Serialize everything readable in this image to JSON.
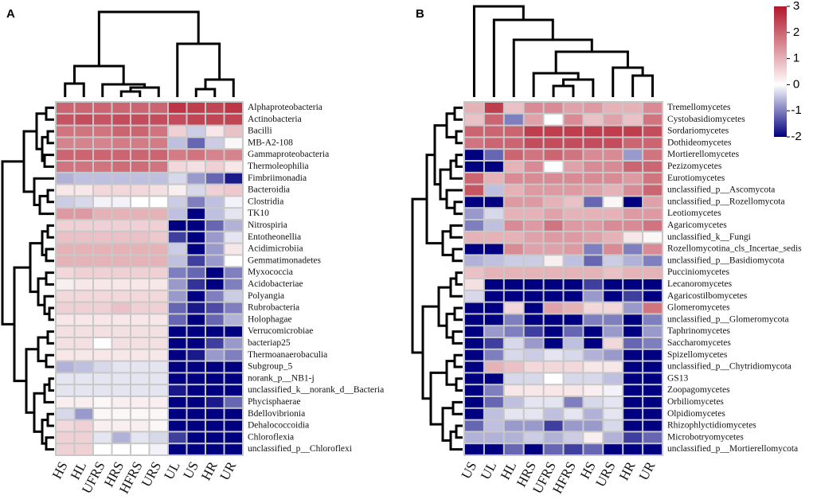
{
  "chart_data": [
    {
      "type": "heatmap",
      "title": "A",
      "columns": [
        "HS",
        "HL",
        "UFRS",
        "HRS",
        "HFRS",
        "URS",
        "UL",
        "US",
        "HR",
        "UR"
      ],
      "rows": [
        "Alphaproteobacteria",
        "Actinobacteria",
        "Bacilli",
        "MB-A2-108",
        "Gammaproteobacteria",
        "Thermoleophilia",
        "Fimbriimonadia",
        "Bacteroidia",
        "Clostridia",
        "TK10",
        "Nitrospiria",
        "Entotheonellia",
        "Acidimicrobiia",
        "Gemmatimonadetes",
        "Myxococcia",
        "Acidobacteriae",
        "Polyangia",
        "Rubrobacteria",
        "Holophagae",
        "Verrucomicrobiae",
        "bacteriap25",
        "Thermoanaerobaculia",
        "Subgroup_5",
        "norank_p__NB1-j",
        "unclassified_k__norank_d__Bacteria",
        "Phycisphaerae",
        "Bdellovibrionia",
        "Dehalococcoidia",
        "Chloroflexia",
        "unclassified_p__Chloroflexi"
      ],
      "values": [
        [
          2,
          2,
          2,
          2,
          2,
          2,
          2.6,
          2.5,
          2.4,
          2.6
        ],
        [
          2.2,
          2.3,
          2.2,
          2.3,
          2.3,
          2.3,
          2.3,
          2.4,
          2.4,
          2.4
        ],
        [
          1.8,
          1.8,
          1.8,
          2,
          2,
          1.8,
          0.6,
          -0.4,
          0.3,
          0.8
        ],
        [
          1.6,
          1.6,
          1.6,
          1.7,
          1.7,
          1.7,
          -0.5,
          -1.2,
          -0.4,
          0.1
        ],
        [
          2,
          2,
          2,
          2,
          2,
          2,
          1.7,
          1.8,
          1.6,
          1.6
        ],
        [
          1.8,
          1.8,
          1.8,
          1.9,
          1.9,
          1.8,
          0.5,
          0.4,
          0.6,
          0.3
        ],
        [
          -0.6,
          -0.5,
          -0.5,
          -0.5,
          -0.5,
          -0.5,
          -0.3,
          -0.8,
          -1.2,
          -1.8
        ],
        [
          0.3,
          0.3,
          0.5,
          0.5,
          0.5,
          0.4,
          0.2,
          -0.3,
          0.6,
          0.7
        ],
        [
          -0.4,
          -0.3,
          -0.1,
          -0.1,
          0,
          0,
          -0.4,
          -1,
          -0.5,
          -0.1
        ],
        [
          1.3,
          1.3,
          1,
          1,
          1,
          1,
          -0.5,
          -2,
          -0.5,
          -0.2
        ],
        [
          0.6,
          0.6,
          0.6,
          0.6,
          0.6,
          0.6,
          -2,
          -2,
          -1.2,
          -0.6
        ],
        [
          0.8,
          0.8,
          0.8,
          0.8,
          0.8,
          0.7,
          -1.5,
          -2,
          -0.8,
          -0.2
        ],
        [
          1,
          1,
          1,
          1,
          1,
          1,
          -0.4,
          -2,
          -0.8,
          0.3
        ],
        [
          1,
          1,
          1,
          1,
          1,
          1,
          -0.5,
          -1.5,
          -0.8,
          0
        ],
        [
          0.5,
          0.6,
          0.6,
          0.6,
          0.6,
          0.6,
          -1,
          -1.2,
          -2,
          -1
        ],
        [
          0.2,
          0.3,
          0.3,
          0.3,
          0.3,
          0.3,
          -0.8,
          -1.6,
          -2,
          -1
        ],
        [
          0.5,
          0.5,
          0.5,
          0.5,
          0.5,
          0.5,
          -0.8,
          -2,
          -1,
          -0.4
        ],
        [
          0.6,
          0.6,
          0.6,
          0.8,
          0.6,
          0.6,
          -1.2,
          -1.8,
          -1.4,
          -1
        ],
        [
          0.3,
          0.3,
          0.3,
          0.3,
          0.3,
          0.3,
          -1.2,
          -2,
          -1.2,
          -0.6
        ],
        [
          0.4,
          0.4,
          0.4,
          0.4,
          0.4,
          0.4,
          -2,
          -2,
          -2,
          -2
        ],
        [
          0.4,
          0.4,
          0,
          0.4,
          0.4,
          0.4,
          -2,
          -2,
          -1.5,
          -0.8
        ],
        [
          0.3,
          0.3,
          0.3,
          0.3,
          0.3,
          0.3,
          -2,
          -1.8,
          -0.8,
          -1
        ],
        [
          -0.6,
          -0.5,
          -0.3,
          -0.2,
          -0.2,
          -0.2,
          -2,
          -2,
          -2,
          -2
        ],
        [
          -0.2,
          -0.2,
          -0.2,
          -0.2,
          -0.2,
          -0.2,
          -2,
          -2,
          -2,
          -2
        ],
        [
          -0.2,
          -0.2,
          -0.2,
          -0.2,
          -0.2,
          -0.2,
          -1.8,
          -2,
          -2,
          -2
        ],
        [
          0.2,
          0.2,
          0.1,
          0.2,
          0.2,
          0.2,
          -2,
          -2,
          -1.8,
          -1.2
        ],
        [
          -0.3,
          -0.8,
          0.1,
          0.1,
          0.1,
          0.1,
          -2,
          -2,
          -2,
          -2
        ],
        [
          0.5,
          0.6,
          0.2,
          0.2,
          0.2,
          0.1,
          -2,
          -2,
          -2,
          -2
        ],
        [
          0.6,
          0.6,
          -0.2,
          -0.6,
          -0.2,
          -0.3,
          -1.5,
          -2,
          -2,
          -2
        ],
        [
          0.6,
          0.6,
          0,
          0,
          0,
          -0.1,
          -2,
          -2,
          -2,
          -2
        ]
      ],
      "zlim": [
        -2,
        3
      ]
    },
    {
      "type": "heatmap",
      "title": "B",
      "columns": [
        "US",
        "UL",
        "HL",
        "HRS",
        "UFRS",
        "HFRS",
        "HS",
        "URS",
        "HR",
        "UR"
      ],
      "rows": [
        "Tremellomycetes",
        "Cystobasidiomycetes",
        "Sordariomycetes",
        "Dothideomycetes",
        "Mortierellomycetes",
        "Pezizomycetes",
        "Eurotiomycetes",
        "unclassified_p__Ascomycota",
        "unclassified_p__Rozellomycota",
        "Leotiomycetes",
        "Agaricomycetes",
        "unclassified_k__Fungi",
        "Rozellomycotina_cls_Incertae_sedis",
        "unclassified_p__Basidiomycota",
        "Pucciniomycetes",
        "Lecanoromycetes",
        "Agaricostilbomycetes",
        "Glomeromycetes",
        "unclassified_p__Glomeromycota",
        "Taphrinomycetes",
        "Saccharomycetes",
        "Spizellomycetes",
        "unclassified_p__Chytridiomycota",
        "GS13",
        "Zoopagomycetes",
        "Orbiliomycetes",
        "Olpidiomycetes",
        "Rhizophlyctidiomycetes",
        "Microbotryomycetes",
        "unclassified_p__Mortierellomycota"
      ],
      "values": [
        [
          1,
          2.5,
          0.8,
          1.5,
          1.5,
          1.2,
          1.3,
          1,
          1,
          1.5
        ],
        [
          0.8,
          2,
          -1,
          1.2,
          0,
          1.5,
          0.8,
          1.2,
          0.8,
          1.8
        ],
        [
          2,
          2,
          2,
          2.5,
          2.5,
          2.5,
          2.5,
          2.5,
          2.5,
          2.3
        ],
        [
          1.8,
          2,
          2,
          2.3,
          2.3,
          2.3,
          2.3,
          2.3,
          2,
          2
        ],
        [
          -2,
          -1.2,
          2,
          1.8,
          2,
          1.8,
          1.5,
          1.5,
          -0.8,
          1.8
        ],
        [
          -2,
          -2,
          1,
          1.5,
          0,
          1.2,
          1.5,
          1.5,
          2,
          2
        ],
        [
          2,
          1,
          1.5,
          1.5,
          1.5,
          1.5,
          1.5,
          1.5,
          1.3,
          1.8
        ],
        [
          2.2,
          -0.5,
          1,
          1.3,
          1.3,
          1.3,
          1.2,
          1,
          1.5,
          2
        ],
        [
          -2,
          -2,
          1.3,
          1.3,
          1,
          0.8,
          -1.2,
          0.1,
          -2,
          1.2
        ],
        [
          -0.8,
          -0.3,
          1,
          1,
          1.2,
          1,
          1,
          1,
          1.3,
          1.3
        ],
        [
          -1,
          -0.5,
          1.5,
          1.3,
          1.8,
          1.3,
          1.3,
          1.5,
          1.5,
          1.8
        ],
        [
          1,
          1,
          1,
          1.2,
          1.3,
          1.3,
          1.2,
          1,
          0.3,
          0.1
        ],
        [
          -2,
          -2,
          1.5,
          1.2,
          1.2,
          1.3,
          -1,
          1.5,
          -1,
          1.5
        ],
        [
          -0.6,
          -0.5,
          -0.4,
          -0.4,
          0.2,
          -0.5,
          -1.2,
          -0.4,
          -0.6,
          -1
        ],
        [
          0.8,
          1,
          1,
          1,
          1,
          1,
          1,
          0.8,
          1,
          1
        ],
        [
          0.4,
          -2,
          -2,
          -2,
          -2,
          -2,
          -1.5,
          -2,
          -2,
          -2
        ],
        [
          -0.3,
          -2,
          -2,
          -2,
          -2,
          -2,
          -0.8,
          -2,
          -1.5,
          -2
        ],
        [
          -2,
          -2,
          0.5,
          -2,
          1.2,
          1,
          0.5,
          0.5,
          -0.8,
          1.8
        ],
        [
          -2,
          -2,
          -1,
          -2,
          -2,
          -2,
          -1,
          -1,
          -2,
          -1
        ],
        [
          -2,
          -0.8,
          -1,
          -1.5,
          -2,
          -1.2,
          -2,
          -0.8,
          -2,
          -0.8
        ],
        [
          -2,
          -1.5,
          -0.3,
          -0.8,
          -2,
          -0.5,
          -2,
          0.5,
          -1.2,
          -1
        ],
        [
          -2,
          -1,
          -0.3,
          -0.4,
          -0.2,
          -0.3,
          -0.6,
          -0.8,
          -2,
          -2
        ],
        [
          -2,
          1,
          0.8,
          0.5,
          0.5,
          0.5,
          0.3,
          0.3,
          -2,
          -2
        ],
        [
          -2,
          -2,
          -0.3,
          -0.3,
          0,
          -0.3,
          -0.3,
          -0.5,
          -2,
          -2
        ],
        [
          -2,
          -1,
          0.3,
          0.3,
          0.3,
          0.3,
          0.2,
          -0.1,
          -2,
          -2
        ],
        [
          -2,
          -1.2,
          -0.5,
          -0.2,
          -0.2,
          -1,
          -0.3,
          -0.2,
          -2,
          -2
        ],
        [
          -2,
          -0.5,
          -0.2,
          -0.2,
          -0.5,
          -0.2,
          -0.6,
          -0.2,
          -2,
          -2
        ],
        [
          -1.2,
          -0.5,
          -0.8,
          -0.8,
          -1.5,
          -0.8,
          -0.8,
          -0.3,
          -2,
          -2
        ],
        [
          -0.6,
          -0.6,
          -0.6,
          -0.4,
          -0.6,
          -0.4,
          0.2,
          -0.6,
          -1.5,
          -1.2
        ],
        [
          -2,
          -2,
          -1.2,
          -2,
          -1.2,
          -1.5,
          -1.2,
          -2,
          -2,
          -2
        ]
      ],
      "zlim": [
        -2,
        3
      ],
      "zticks": [
        3,
        2,
        1,
        0,
        -1,
        -2
      ]
    }
  ]
}
